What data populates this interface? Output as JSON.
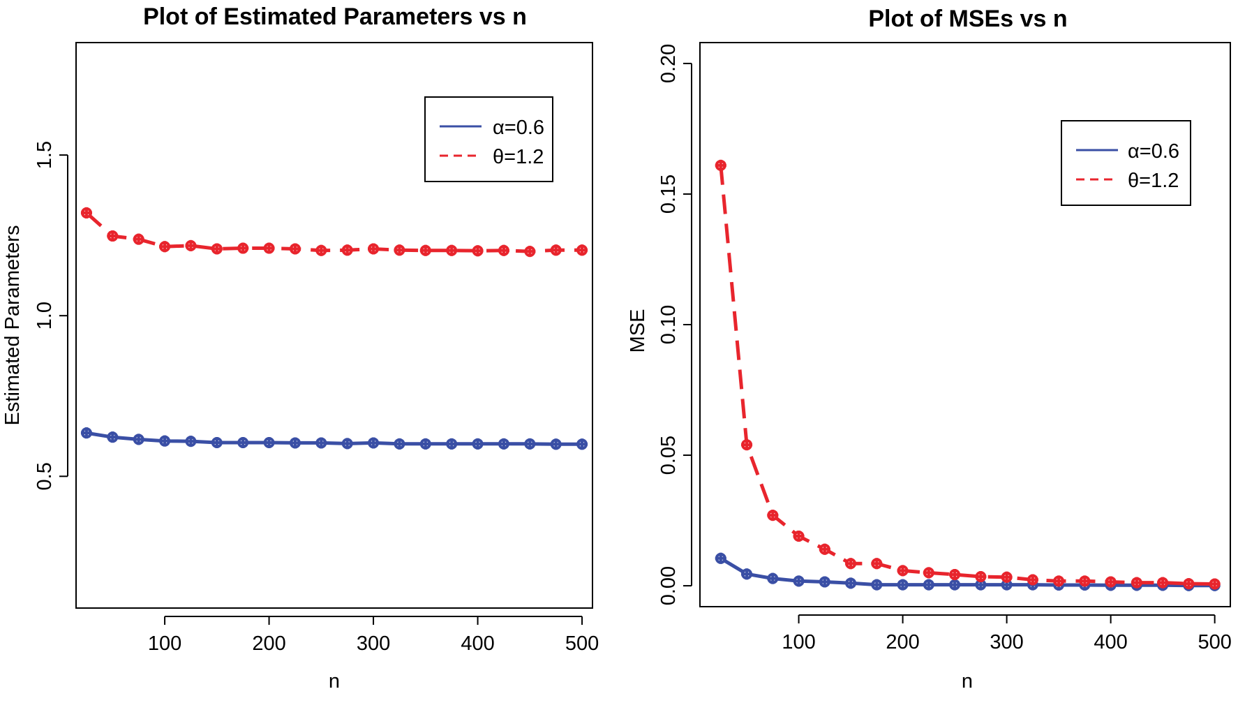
{
  "chart_data": [
    {
      "type": "line",
      "title": "Plot of Estimated Parameters vs n",
      "xlabel": "n",
      "ylabel": "Estimated Parameters",
      "xlim": [
        15,
        510
      ],
      "ylim": [
        0.09,
        1.85
      ],
      "xticks": [
        100,
        200,
        300,
        400,
        500
      ],
      "xtick_labels": [
        "100",
        "200",
        "300",
        "400",
        "500"
      ],
      "yticks": [
        0.5,
        1.0,
        1.5
      ],
      "ytick_labels": [
        "0.5",
        "1.0",
        "1.5"
      ],
      "x": [
        25,
        50,
        75,
        100,
        125,
        150,
        175,
        200,
        225,
        250,
        275,
        300,
        325,
        350,
        375,
        400,
        425,
        450,
        475,
        500
      ],
      "series": [
        {
          "name": "α=0.6",
          "color": "#3a4fa5",
          "dash": "solid",
          "values": [
            0.635,
            0.622,
            0.615,
            0.61,
            0.609,
            0.605,
            0.605,
            0.605,
            0.604,
            0.604,
            0.602,
            0.604,
            0.601,
            0.601,
            0.601,
            0.601,
            0.601,
            0.601,
            0.6,
            0.6
          ]
        },
        {
          "name": "θ=1.2",
          "color": "#e8252d",
          "dash": "dashed",
          "values": [
            1.32,
            1.248,
            1.238,
            1.215,
            1.218,
            1.208,
            1.21,
            1.21,
            1.208,
            1.203,
            1.204,
            1.208,
            1.204,
            1.203,
            1.203,
            1.202,
            1.203,
            1.2,
            1.204,
            1.204
          ]
        }
      ],
      "legend": {
        "position": "top-right",
        "entries": [
          "α=0.6",
          "θ=1.2"
        ]
      }
    },
    {
      "type": "line",
      "title": "Plot of MSEs vs n",
      "xlabel": "n",
      "ylabel": "MSE",
      "xlim": [
        5,
        515
      ],
      "ylim": [
        -0.008,
        0.208
      ],
      "xticks": [
        100,
        200,
        300,
        400,
        500
      ],
      "xtick_labels": [
        "100",
        "200",
        "300",
        "400",
        "500"
      ],
      "yticks": [
        0.0,
        0.05,
        0.1,
        0.15,
        0.2
      ],
      "ytick_labels": [
        "0.00",
        "0.05",
        "0.10",
        "0.15",
        "0.20"
      ],
      "x": [
        25,
        50,
        75,
        100,
        125,
        150,
        175,
        200,
        225,
        250,
        275,
        300,
        325,
        350,
        375,
        400,
        425,
        450,
        475,
        500
      ],
      "series": [
        {
          "name": "α=0.6",
          "color": "#3a4fa5",
          "dash": "solid",
          "values": [
            0.0105,
            0.0045,
            0.0028,
            0.0018,
            0.0015,
            0.001,
            0.0004,
            0.0004,
            0.0004,
            0.0004,
            0.0004,
            0.0004,
            0.0004,
            0.0003,
            0.0003,
            0.0002,
            0.0002,
            0.0002,
            0.0001,
            0.0001
          ]
        },
        {
          "name": "θ=1.2",
          "color": "#e8252d",
          "dash": "dashed",
          "values": [
            0.161,
            0.054,
            0.027,
            0.019,
            0.014,
            0.0085,
            0.0085,
            0.0058,
            0.005,
            0.0043,
            0.0035,
            0.0033,
            0.0023,
            0.0018,
            0.0018,
            0.0015,
            0.0012,
            0.0012,
            0.0008,
            0.0007
          ]
        }
      ],
      "legend": {
        "position": "top-right",
        "entries": [
          "α=0.6",
          "θ=1.2"
        ]
      }
    }
  ]
}
